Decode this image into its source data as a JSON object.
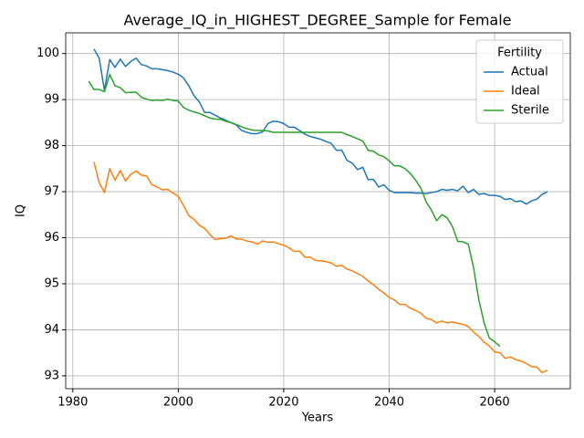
{
  "chart_data": {
    "type": "line",
    "title": "Average_IQ_in_HIGHEST_DEGREE_Sample for Female",
    "x_label": "Years",
    "y_label": "IQ",
    "x": [
      1983,
      1984,
      1985,
      1986,
      1987,
      1988,
      1989,
      1990,
      1991,
      1992,
      1993,
      1994,
      1995,
      1996,
      1997,
      1998,
      1999,
      2000,
      2001,
      2002,
      2003,
      2004,
      2005,
      2006,
      2007,
      2008,
      2009,
      2010,
      2011,
      2012,
      2013,
      2014,
      2015,
      2016,
      2017,
      2018,
      2019,
      2020,
      2021,
      2022,
      2023,
      2024,
      2025,
      2026,
      2027,
      2028,
      2029,
      2030,
      2031,
      2032,
      2033,
      2034,
      2035,
      2036,
      2037,
      2038,
      2039,
      2040,
      2041,
      2042,
      2043,
      2044,
      2045,
      2046,
      2047,
      2048,
      2049,
      2050,
      2051,
      2052,
      2053,
      2054,
      2055,
      2056,
      2057,
      2058,
      2059,
      2060,
      2061,
      2062,
      2063,
      2064,
      2065,
      2066,
      2067,
      2068,
      2069,
      2070
    ],
    "series": [
      {
        "name": "Actual",
        "color": "#1f77b4",
        "values": [
          null,
          100.1,
          99.9,
          99.2,
          99.87,
          99.7,
          99.88,
          99.72,
          99.83,
          99.9,
          99.76,
          99.73,
          99.67,
          99.67,
          99.65,
          99.63,
          99.6,
          99.55,
          99.47,
          99.3,
          99.08,
          98.95,
          98.72,
          98.72,
          98.66,
          98.6,
          98.55,
          98.5,
          98.45,
          98.33,
          98.29,
          98.26,
          98.26,
          98.3,
          98.48,
          98.53,
          98.52,
          98.48,
          98.4,
          98.4,
          98.33,
          98.25,
          98.2,
          98.17,
          98.14,
          98.09,
          98.05,
          97.9,
          97.9,
          97.68,
          97.62,
          97.48,
          97.53,
          97.26,
          97.27,
          97.1,
          97.15,
          97.03,
          96.98,
          96.98,
          96.98,
          96.98,
          96.97,
          96.97,
          96.96,
          96.98,
          97.0,
          97.05,
          97.03,
          97.05,
          97.02,
          97.12,
          96.98,
          97.05,
          96.94,
          96.96,
          96.92,
          96.92,
          96.9,
          96.83,
          96.85,
          96.78,
          96.8,
          96.73,
          96.8,
          96.84,
          96.94,
          97.0
        ]
      },
      {
        "name": "Ideal",
        "color": "#ff7f0e",
        "values": [
          null,
          97.65,
          97.2,
          96.98,
          97.5,
          97.25,
          97.46,
          97.23,
          97.38,
          97.45,
          97.36,
          97.34,
          97.15,
          97.1,
          97.04,
          97.05,
          96.97,
          96.9,
          96.7,
          96.48,
          96.4,
          96.27,
          96.2,
          96.07,
          95.96,
          95.98,
          95.99,
          96.04,
          95.97,
          95.97,
          95.93,
          95.91,
          95.86,
          95.93,
          95.9,
          95.91,
          95.87,
          95.84,
          95.78,
          95.7,
          95.71,
          95.58,
          95.58,
          95.51,
          95.5,
          95.48,
          95.45,
          95.38,
          95.4,
          95.32,
          95.28,
          95.22,
          95.16,
          95.06,
          94.98,
          94.88,
          94.8,
          94.7,
          94.65,
          94.55,
          94.55,
          94.47,
          94.42,
          94.36,
          94.25,
          94.22,
          94.15,
          94.19,
          94.15,
          94.17,
          94.14,
          94.12,
          94.07,
          93.95,
          93.86,
          93.73,
          93.65,
          93.52,
          93.5,
          93.38,
          93.41,
          93.35,
          93.32,
          93.27,
          93.2,
          93.19,
          93.07,
          93.12
        ]
      },
      {
        "name": "Sterile",
        "color": "#2ca02c",
        "values": [
          99.4,
          99.22,
          99.22,
          99.17,
          99.55,
          99.3,
          99.26,
          99.15,
          99.16,
          99.16,
          99.05,
          99.01,
          98.98,
          98.99,
          98.98,
          99.01,
          98.98,
          98.97,
          98.83,
          98.77,
          98.73,
          98.7,
          98.65,
          98.6,
          98.58,
          98.57,
          98.53,
          98.5,
          98.46,
          98.41,
          98.37,
          98.34,
          98.33,
          98.33,
          98.32,
          98.29,
          98.29,
          98.29,
          98.29,
          98.29,
          98.29,
          98.29,
          98.29,
          98.29,
          98.29,
          98.29,
          98.29,
          98.29,
          98.29,
          98.24,
          98.2,
          98.15,
          98.1,
          97.9,
          97.88,
          97.8,
          97.76,
          97.67,
          97.56,
          97.56,
          97.5,
          97.4,
          97.25,
          97.08,
          96.78,
          96.6,
          96.37,
          96.5,
          96.43,
          96.24,
          95.92,
          95.91,
          95.86,
          95.35,
          94.65,
          94.15,
          93.82,
          93.74,
          93.64,
          null,
          null,
          null,
          null,
          null,
          null,
          null,
          null,
          null
        ]
      }
    ],
    "xlim": [
      1978.65,
      2074.35
    ],
    "ylim": [
      92.72,
      100.45
    ],
    "xticks": [
      1980,
      2000,
      2020,
      2040,
      2060
    ],
    "yticks": [
      93,
      94,
      95,
      96,
      97,
      98,
      99,
      100
    ],
    "grid": true,
    "legend_title": "Fertility",
    "legend_loc": "upper right"
  }
}
